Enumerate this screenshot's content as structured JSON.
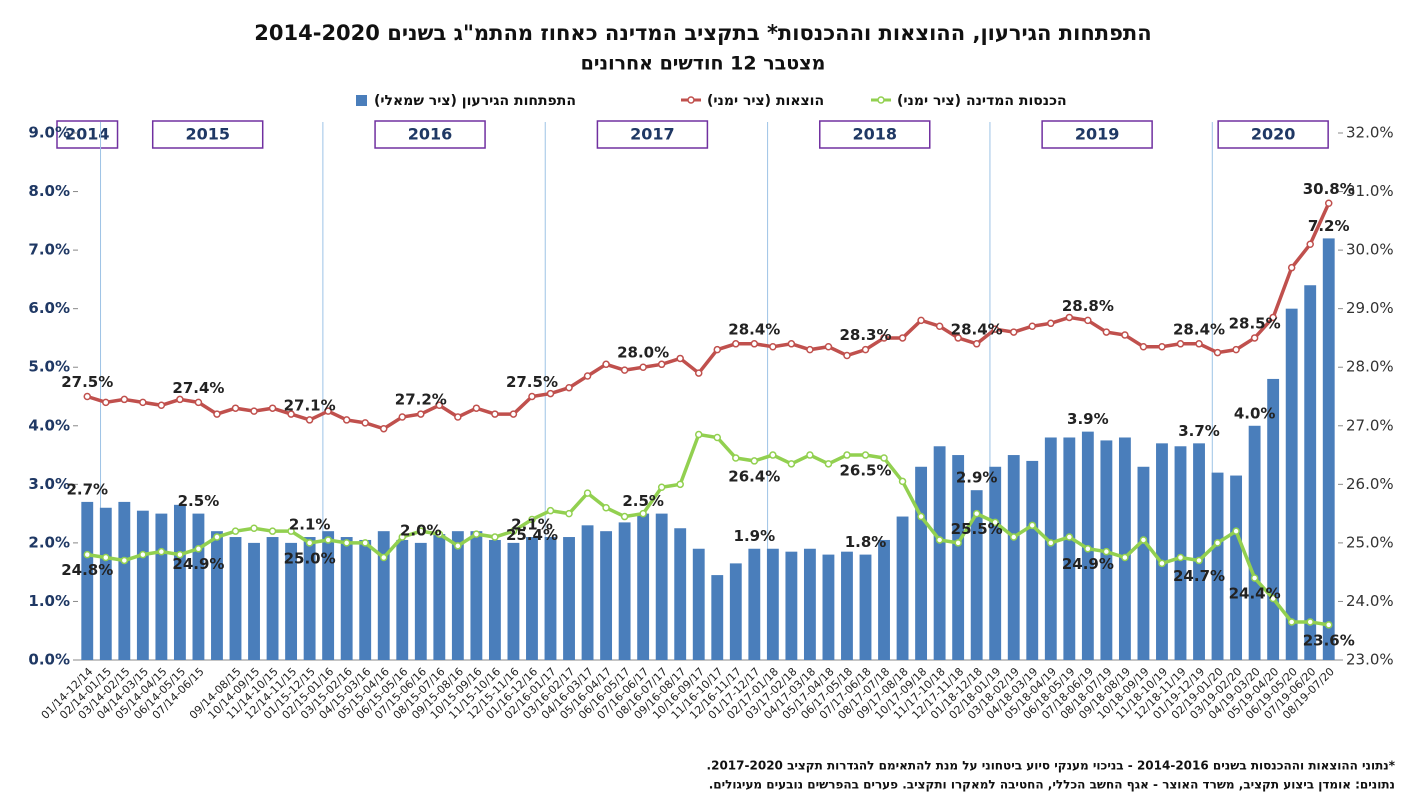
{
  "chart_data": {
    "type": "bar_line",
    "title": "התפתחות הגירעון, ההוצאות וההכנסות* בתקציב המדינה כאחוז מהתמ\"ג בשנים 2014-2020",
    "subtitle": "מצטבר 12 חודשים אחרונים",
    "notes": [
      "*נתוני ההוצאות וההכנסות בשנים 2014-2016 - בניכוי מענקי סיוע ביטחוני על מנת להתאימם להגדרות תקציב 2017-2020.",
      "נתונים: אומדן ביצוע תקציב, משרד האוצר - אגף החשב הכללי, החטיבה למאקרו ותקציב. פערים בהפרשים נובעים מעיגולים."
    ],
    "year_labels": [
      "2014",
      "2015",
      "2016",
      "2017",
      "2018",
      "2019",
      "2020"
    ],
    "categories": [
      "01/14-12/14",
      "02/14-01/15",
      "03/14-02/15",
      "04/14-03/15",
      "05/14-04/15",
      "06/14-05/15",
      "07/14-06/15",
      null,
      "09/14-08/15",
      "10/14-09/15",
      "11/14-10/15",
      "12/14-11/15",
      "01/15-12/15",
      "02/15-01/16",
      "03/15-02/16",
      "04/15-03/16",
      "05/15-04/16",
      "06/15-05/16",
      "07/15-06/16",
      "08/15-07/16",
      "09/15-08/16",
      "10/15-09/16",
      "11/15-10/16",
      "12/15-11/16",
      "01/16-12/16",
      "02/16-01/17",
      "03/16-02/17",
      "04/16-03/17",
      "05/16-04/17",
      "06/16-05/17",
      "07/16-06/17",
      "08/16-07/17",
      "09/16-08/17",
      "10/16-09/17",
      "11/16-10/17",
      "12/16-11/17",
      "01/17-12/17",
      "02/17-01/18",
      "03/17-02/18",
      "04/17-03/18",
      "05/17-04/18",
      "06/17-05/18",
      "07/17-06/18",
      "08/17-07/18",
      "09/17-08/18",
      "10/17-09/18",
      "11/17-10/18",
      "12/17-11/18",
      "01/18-12/18",
      "02/18-01/19",
      "03/18-02/19",
      "04/18-03/19",
      "05/18-04/19",
      "06/18-05/19",
      "07/18-06/19",
      "08/18-07/19",
      "09/18-08/19",
      "10/18-09/19",
      "11/18-10/19",
      "12/18-11/19",
      "01/19-12/19",
      "02/19-01/20",
      "03/19-02/20",
      "04/19-03/20",
      "05/19-04/20",
      "06/19-05/20",
      "07/19-06/20",
      "08/19-07/20"
    ],
    "series": [
      {
        "name": "התפתחות הגירעון (ציר שמאלי)",
        "kind": "bar",
        "axis": "y",
        "color": "#4a7ebb",
        "values": [
          2.7,
          2.6,
          2.7,
          2.55,
          2.5,
          2.65,
          2.5,
          2.2,
          2.1,
          2.0,
          2.1,
          2.0,
          2.1,
          2.2,
          2.1,
          2.05,
          2.2,
          2.05,
          2.0,
          2.15,
          2.2,
          2.2,
          2.05,
          2.0,
          2.1,
          2.1,
          2.1,
          2.3,
          2.2,
          2.35,
          2.5,
          2.5,
          2.25,
          1.9,
          1.45,
          1.65,
          1.9,
          1.9,
          1.85,
          1.9,
          1.8,
          1.85,
          1.8,
          2.05,
          2.45,
          3.3,
          3.65,
          3.5,
          2.9,
          3.3,
          3.5,
          3.4,
          3.8,
          3.8,
          3.9,
          3.75,
          3.8,
          3.3,
          3.7,
          3.65,
          3.7,
          3.2,
          3.15,
          4.0,
          4.8,
          6.0,
          6.4,
          7.2
        ],
        "value_labels": [
          "2.7%",
          null,
          null,
          null,
          null,
          null,
          "2.5%",
          null,
          null,
          null,
          null,
          null,
          "2.1%",
          null,
          null,
          null,
          null,
          null,
          "2.0%",
          null,
          null,
          null,
          null,
          null,
          "2.1%",
          null,
          null,
          null,
          null,
          null,
          "2.5%",
          null,
          null,
          null,
          null,
          null,
          "1.9%",
          null,
          null,
          null,
          null,
          null,
          "1.8%",
          null,
          null,
          null,
          null,
          null,
          "2.9%",
          null,
          null,
          null,
          null,
          null,
          "3.9%",
          null,
          null,
          null,
          null,
          null,
          "3.7%",
          null,
          null,
          "4.0%",
          null,
          null,
          null,
          "7.2%"
        ]
      },
      {
        "name": "הוצאות (ציר ימני)",
        "kind": "line",
        "axis": "y2",
        "color": "#c0504d",
        "values": [
          27.5,
          27.4,
          27.45,
          27.4,
          27.35,
          27.45,
          27.4,
          27.2,
          27.3,
          27.25,
          27.3,
          27.2,
          27.1,
          27.25,
          27.1,
          27.05,
          26.95,
          27.15,
          27.2,
          27.35,
          27.15,
          27.3,
          27.2,
          27.2,
          27.5,
          27.55,
          27.65,
          27.85,
          28.05,
          27.95,
          28.0,
          28.05,
          28.15,
          27.9,
          28.3,
          28.4,
          28.4,
          28.35,
          28.4,
          28.3,
          28.35,
          28.2,
          28.3,
          28.5,
          28.5,
          28.8,
          28.7,
          28.5,
          28.4,
          28.65,
          28.6,
          28.7,
          28.75,
          28.85,
          28.8,
          28.6,
          28.55,
          28.35,
          28.35,
          28.4,
          28.4,
          28.25,
          28.3,
          28.5,
          28.85,
          29.7,
          30.1,
          30.8
        ],
        "value_labels": [
          "27.5%",
          null,
          null,
          null,
          null,
          null,
          "27.4%",
          null,
          null,
          null,
          null,
          null,
          "27.1%",
          null,
          null,
          null,
          null,
          null,
          "27.2%",
          null,
          null,
          null,
          null,
          null,
          "27.5%",
          null,
          null,
          null,
          null,
          null,
          "28.0%",
          null,
          null,
          null,
          null,
          null,
          "28.4%",
          null,
          null,
          null,
          null,
          null,
          "28.3%",
          null,
          null,
          null,
          null,
          null,
          "28.4%",
          null,
          null,
          null,
          null,
          null,
          "28.8%",
          null,
          null,
          null,
          null,
          null,
          "28.4%",
          null,
          null,
          "28.5%",
          null,
          null,
          null,
          "30.8%"
        ]
      },
      {
        "name": "הכנסות המדינה (ציר ימני)",
        "kind": "line",
        "axis": "y2",
        "color": "#92d050",
        "values": [
          24.8,
          24.75,
          24.7,
          24.8,
          24.85,
          24.8,
          24.9,
          25.1,
          25.2,
          25.25,
          25.2,
          25.2,
          25.0,
          25.05,
          25.0,
          25.0,
          24.75,
          25.1,
          25.2,
          25.15,
          24.95,
          25.15,
          25.1,
          25.2,
          25.4,
          25.55,
          25.5,
          25.85,
          25.6,
          25.45,
          25.5,
          25.95,
          26.0,
          26.85,
          26.8,
          26.45,
          26.4,
          26.5,
          26.35,
          26.5,
          26.35,
          26.5,
          26.5,
          26.45,
          26.05,
          25.45,
          25.05,
          25.0,
          25.5,
          25.35,
          25.1,
          25.3,
          25.0,
          25.1,
          24.9,
          24.85,
          24.75,
          25.05,
          24.65,
          24.75,
          24.7,
          25.0,
          25.2,
          24.4,
          24.05,
          23.65,
          23.65,
          23.6
        ],
        "value_labels": [
          "24.8%",
          null,
          null,
          null,
          null,
          null,
          "24.9%",
          null,
          null,
          null,
          null,
          null,
          "25.0%",
          null,
          null,
          null,
          null,
          null,
          null,
          null,
          null,
          null,
          null,
          null,
          "25.4%",
          null,
          null,
          null,
          null,
          null,
          null,
          null,
          null,
          null,
          null,
          null,
          "26.4%",
          null,
          null,
          null,
          null,
          null,
          "26.5%",
          null,
          null,
          null,
          null,
          null,
          "25.5%",
          null,
          null,
          null,
          null,
          null,
          "24.9%",
          null,
          null,
          null,
          null,
          null,
          "24.7%",
          null,
          null,
          "24.4%",
          null,
          null,
          null,
          "23.6%"
        ]
      }
    ],
    "ylim": [
      0,
      9
    ],
    "yticks": [
      {
        "value": 0,
        "label": "0.0%"
      },
      {
        "value": 1,
        "label": "1.0%"
      },
      {
        "value": 2,
        "label": "2.0%"
      },
      {
        "value": 3,
        "label": "3.0%"
      },
      {
        "value": 4,
        "label": "4.0%"
      },
      {
        "value": 5,
        "label": "5.0%"
      },
      {
        "value": 6,
        "label": "6.0%"
      },
      {
        "value": 7,
        "label": "7.0%"
      },
      {
        "value": 8,
        "label": "8.0%"
      },
      {
        "value": 9,
        "label": "9.0%"
      }
    ],
    "y2lim": [
      23,
      32
    ],
    "y2ticks": [
      {
        "value": 23,
        "label": "23.0%"
      },
      {
        "value": 24,
        "label": "24.0%"
      },
      {
        "value": 25,
        "label": "25.0%"
      },
      {
        "value": 26,
        "label": "26.0%"
      },
      {
        "value": 27,
        "label": "27.0%"
      },
      {
        "value": 28,
        "label": "28.0%"
      },
      {
        "value": 29,
        "label": "29.0%"
      },
      {
        "value": 30,
        "label": "30.0%"
      },
      {
        "value": 31,
        "label": "31.0%"
      },
      {
        "value": 32,
        "label": "32.0%"
      }
    ],
    "legend": "top"
  }
}
